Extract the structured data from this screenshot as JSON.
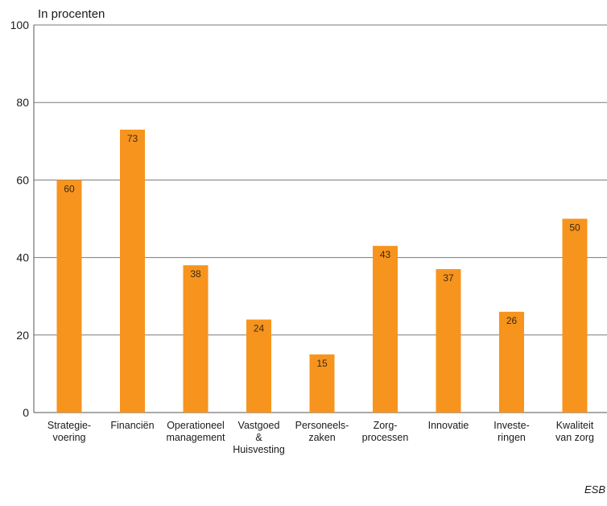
{
  "chart_data": {
    "type": "bar",
    "ylabel": "In procenten",
    "ylim": [
      0,
      100
    ],
    "yticks": [
      0,
      20,
      40,
      60,
      80,
      100
    ],
    "grid": true,
    "categories": [
      [
        "Strategie-",
        "voering"
      ],
      [
        "Financiën"
      ],
      [
        "Operationeel",
        "management"
      ],
      [
        "Vastgoed",
        "&",
        "Huisvesting"
      ],
      [
        "Personeels-",
        "zaken"
      ],
      [
        "Zorg-",
        "processen"
      ],
      [
        "Innovatie"
      ],
      [
        "Investe-",
        "ringen"
      ],
      [
        "Kwaliteit",
        "van zorg"
      ]
    ],
    "values": [
      60,
      73,
      38,
      24,
      15,
      43,
      37,
      26,
      50
    ],
    "colors": {
      "bar": "#F7941D",
      "grid": "#7a7a7a",
      "axis": "#555555"
    }
  },
  "source": "ESB"
}
